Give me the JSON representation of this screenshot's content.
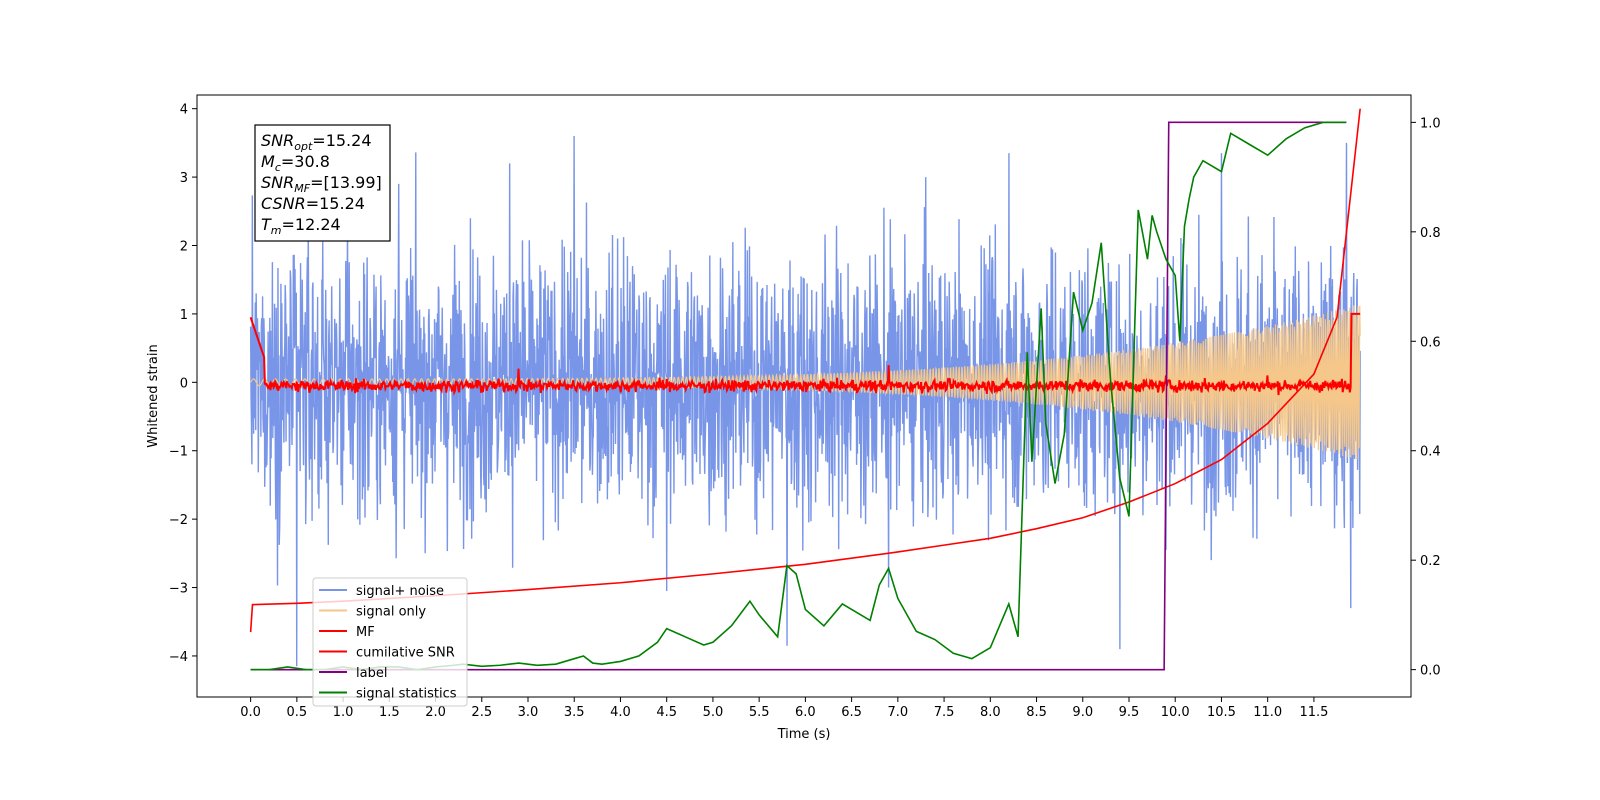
{
  "chart_data": {
    "type": "line",
    "xlabel": "Time (s)",
    "ylabel": "Whitened strain",
    "xlim": [
      -0.58,
      12.55
    ],
    "ylim": [
      -4.6,
      4.2
    ],
    "y2lim": [
      -0.05,
      1.05
    ],
    "grid": false,
    "legend_position": "lower-left",
    "x_ticks": [
      "0.0",
      "0.5",
      "1.0",
      "1.5",
      "2.0",
      "2.5",
      "3.0",
      "3.5",
      "4.0",
      "4.5",
      "5.0",
      "5.5",
      "6.0",
      "6.5",
      "7.0",
      "7.5",
      "8.0",
      "8.5",
      "9.0",
      "9.5",
      "10.0",
      "10.5",
      "11.0",
      "11.5"
    ],
    "y_ticks": [
      "4",
      "3",
      "2",
      "1",
      "0",
      "−1",
      "−2",
      "−3",
      "−4"
    ],
    "y2_ticks": [
      "1.0",
      "0.8",
      "0.6",
      "0.4",
      "0.2",
      "0.0"
    ],
    "stats_box": [
      {
        "symbol": "SNR",
        "sub": "opt",
        "value": "=15.24"
      },
      {
        "symbol": "M",
        "sub": "c",
        "value": "=30.8"
      },
      {
        "symbol": "SNR",
        "sub": "MF",
        "value": "=[13.99]"
      },
      {
        "symbol": "CSNR",
        "sub": "",
        "value": "=15.24"
      },
      {
        "symbol": "T",
        "sub": "m",
        "value": "=12.24"
      }
    ],
    "series": [
      {
        "name": "signal+ noise",
        "color": "#7895e8",
        "axis": "left",
        "kind": "noise",
        "t_range": [
          0.0,
          12.0
        ],
        "amplitude_sigma": 1.0,
        "peaks": [
          [
            0.5,
            -4.15
          ],
          [
            1.6,
            2.9
          ],
          [
            2.8,
            3.2
          ],
          [
            3.5,
            3.6
          ],
          [
            4.5,
            -3.05
          ],
          [
            5.8,
            -3.85
          ],
          [
            6.9,
            -3.0
          ],
          [
            7.3,
            3.0
          ],
          [
            7.9,
            2.0
          ],
          [
            8.2,
            3.35
          ],
          [
            9.4,
            -3.9
          ],
          [
            9.9,
            -2.45
          ],
          [
            10.5,
            3.35
          ],
          [
            11.85,
            3.5
          ],
          [
            11.9,
            -3.3
          ]
        ]
      },
      {
        "name": "signal only",
        "color": "#f5c78a",
        "axis": "left",
        "kind": "chirp",
        "t_range": [
          0.0,
          12.0
        ],
        "start_amplitude": 0.05,
        "end_amplitude": 1.15
      },
      {
        "name": "MF",
        "color": "#ff0000",
        "axis": "left",
        "kind": "matched-filter",
        "start_value": 0.95,
        "baseline": -0.05,
        "end_value": 1.0,
        "bumps": [
          [
            2.9,
            0.2
          ],
          [
            6.9,
            0.25
          ],
          [
            9.9,
            0.1
          ],
          [
            11.0,
            0.1
          ]
        ]
      },
      {
        "name": "cumilative SNR",
        "color": "#ff0000",
        "axis": "left",
        "x": [
          0.0,
          0.02,
          0.5,
          1.0,
          2.0,
          3.0,
          4.0,
          5.0,
          6.0,
          7.0,
          7.5,
          8.0,
          8.5,
          9.0,
          9.5,
          10.0,
          10.5,
          11.0,
          11.5,
          11.75,
          12.0
        ],
        "y": [
          -3.65,
          -3.25,
          -3.23,
          -3.2,
          -3.12,
          -3.03,
          -2.93,
          -2.8,
          -2.66,
          -2.48,
          -2.38,
          -2.28,
          -2.14,
          -1.98,
          -1.75,
          -1.48,
          -1.13,
          -0.6,
          0.12,
          0.95,
          4.0
        ]
      },
      {
        "name": "label",
        "color": "#800080",
        "axis": "right",
        "x": [
          0.0,
          9.88,
          9.93,
          11.85
        ],
        "y": [
          0.0,
          0.0,
          1.0,
          1.0
        ]
      },
      {
        "name": "signal statistics",
        "color": "#008000",
        "axis": "right",
        "x": [
          0.0,
          0.2,
          0.4,
          0.6,
          0.8,
          1.0,
          1.2,
          1.4,
          1.6,
          1.8,
          2.0,
          2.2,
          2.3,
          2.5,
          2.7,
          2.9,
          3.1,
          3.3,
          3.5,
          3.6,
          3.7,
          3.8,
          4.0,
          4.2,
          4.4,
          4.5,
          4.7,
          4.9,
          5.0,
          5.2,
          5.4,
          5.5,
          5.7,
          5.8,
          5.9,
          6.0,
          6.2,
          6.4,
          6.5,
          6.7,
          6.8,
          6.9,
          7.0,
          7.2,
          7.4,
          7.6,
          7.8,
          8.0,
          8.1,
          8.2,
          8.3,
          8.4,
          8.45,
          8.55,
          8.6,
          8.7,
          8.8,
          8.9,
          9.0,
          9.1,
          9.2,
          9.3,
          9.4,
          9.5,
          9.6,
          9.7,
          9.75,
          9.8,
          9.9,
          10.0,
          10.05,
          10.1,
          10.15,
          10.2,
          10.3,
          10.5,
          10.6,
          10.8,
          11.0,
          11.2,
          11.4,
          11.6,
          11.85
        ],
        "y": [
          0.0,
          0.0,
          0.005,
          0.0,
          0.0,
          0.005,
          0.0,
          0.005,
          0.005,
          0.0,
          0.005,
          0.008,
          0.01,
          0.006,
          0.008,
          0.012,
          0.008,
          0.01,
          0.02,
          0.025,
          0.012,
          0.01,
          0.015,
          0.025,
          0.05,
          0.075,
          0.06,
          0.045,
          0.05,
          0.08,
          0.125,
          0.1,
          0.06,
          0.19,
          0.175,
          0.11,
          0.08,
          0.12,
          0.11,
          0.09,
          0.155,
          0.185,
          0.13,
          0.07,
          0.055,
          0.03,
          0.02,
          0.04,
          0.08,
          0.12,
          0.06,
          0.58,
          0.38,
          0.66,
          0.45,
          0.34,
          0.43,
          0.69,
          0.62,
          0.67,
          0.78,
          0.53,
          0.35,
          0.28,
          0.84,
          0.75,
          0.83,
          0.8,
          0.75,
          0.72,
          0.6,
          0.81,
          0.86,
          0.9,
          0.93,
          0.91,
          0.98,
          0.96,
          0.94,
          0.97,
          0.99,
          1.0,
          1.0
        ]
      }
    ]
  }
}
